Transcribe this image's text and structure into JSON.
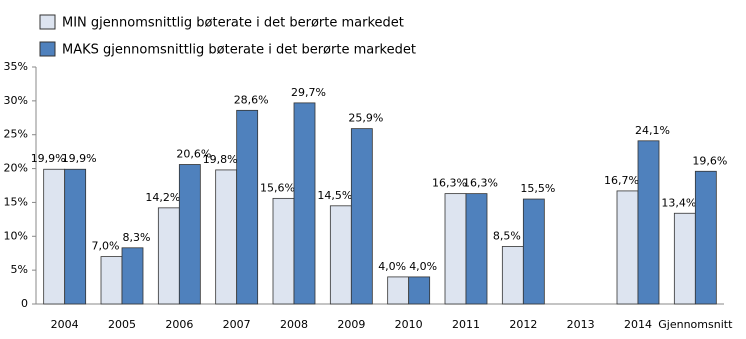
{
  "chart_data": {
    "type": "bar",
    "categories": [
      "2004",
      "2005",
      "2006",
      "2007",
      "2008",
      "2009",
      "2010",
      "2011",
      "2012",
      "2013",
      "2014",
      "Gjennomsnitt"
    ],
    "series": [
      {
        "name": "MIN gjennomsnittlig bøterate i det berørte markedet",
        "color": "#dde4f0",
        "values": [
          19.9,
          7.0,
          14.2,
          19.8,
          15.6,
          14.5,
          4.0,
          16.3,
          8.5,
          null,
          16.7,
          13.4
        ],
        "value_labels": [
          "19,9%",
          "7,0%",
          "14,2%",
          "19,8%",
          "15,6%",
          "14,5%",
          "4,0%",
          "16,3%",
          "8,5%",
          null,
          "16,7%",
          "13,4%"
        ]
      },
      {
        "name": "MAKS gjennomsnittlig bøterate i det berørte markedet",
        "color": "#4f81bd",
        "values": [
          19.9,
          8.3,
          20.6,
          28.6,
          29.7,
          25.9,
          4.0,
          16.3,
          15.5,
          null,
          24.1,
          19.6
        ],
        "value_labels": [
          "19,9%",
          "8,3%",
          "20,6%",
          "28,6%",
          "29,7%",
          "25,9%",
          "4,0%",
          "16,3%",
          "15,5%",
          null,
          "24,1%",
          "19,6%"
        ]
      }
    ],
    "ylim": [
      0,
      35
    ],
    "yticks": [
      0,
      {
        "value": 5,
        "label": "5%"
      },
      {
        "value": 10,
        "label": "10%"
      },
      {
        "value": 15,
        "label": "15%"
      },
      {
        "value": 20,
        "label": "20%"
      },
      {
        "value": 25,
        "label": "25%"
      },
      {
        "value": 30,
        "label": "30%"
      },
      {
        "value": 35,
        "label": "35%"
      }
    ],
    "grid": false,
    "legend": "top-left"
  }
}
